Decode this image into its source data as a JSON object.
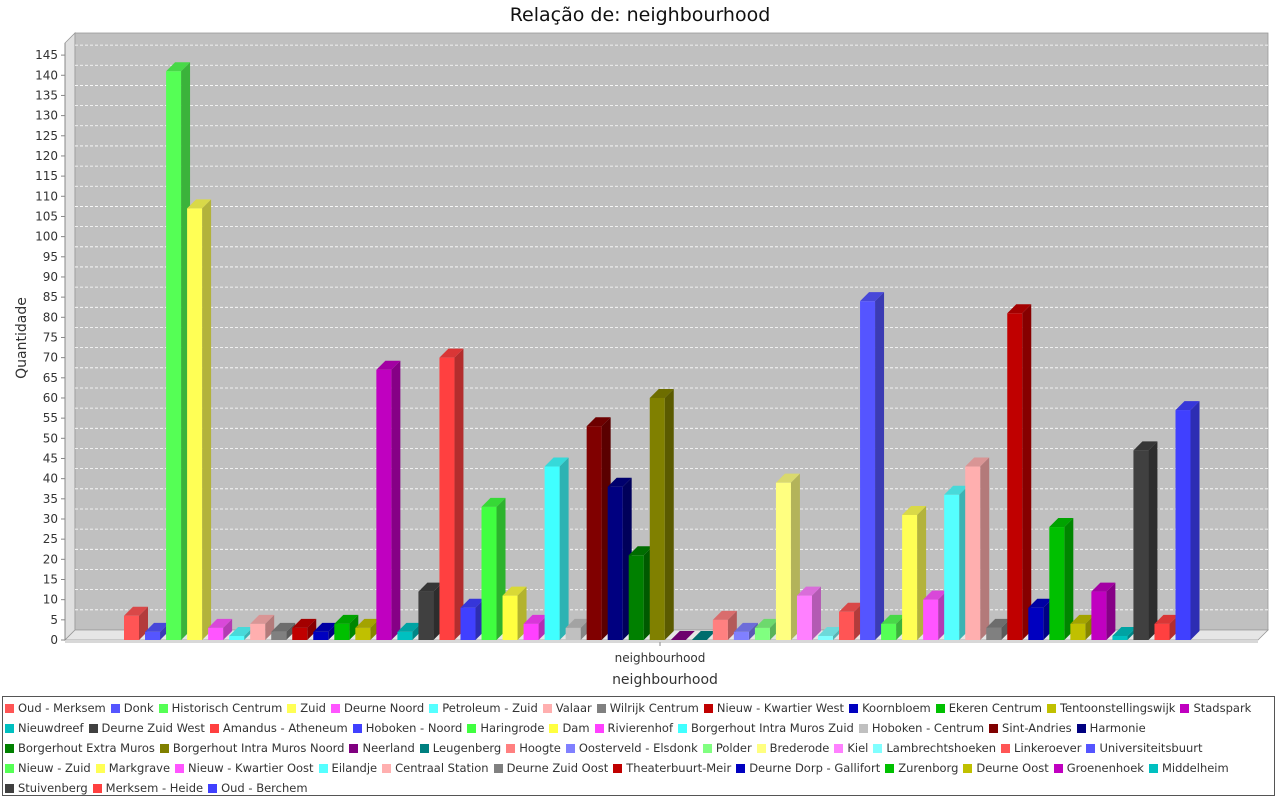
{
  "chart_data": {
    "type": "bar",
    "title": "Relação de: neighbourhood",
    "xlabel": "neighbourhood",
    "ylabel": "Quantidade",
    "categories": [
      "neighbourhood"
    ],
    "ylim": [
      0,
      148
    ],
    "yticks": [
      0,
      5,
      10,
      15,
      20,
      25,
      30,
      35,
      40,
      45,
      50,
      55,
      60,
      65,
      70,
      75,
      80,
      85,
      90,
      95,
      100,
      105,
      110,
      115,
      120,
      125,
      130,
      135,
      140,
      145
    ],
    "grid": true,
    "legend_position": "bottom",
    "series": [
      {
        "name": "Oud - Merksem",
        "value": 6,
        "color": "#ff5555"
      },
      {
        "name": "Donk",
        "value": 2,
        "color": "#5555ff"
      },
      {
        "name": "Historisch Centrum",
        "value": 141,
        "color": "#55ff55"
      },
      {
        "name": "Zuid",
        "value": 107,
        "color": "#ffff55"
      },
      {
        "name": "Deurne Noord",
        "value": 3,
        "color": "#ff55ff"
      },
      {
        "name": "Petroleum - Zuid",
        "value": 1,
        "color": "#55ffff"
      },
      {
        "name": "Valaar",
        "value": 4,
        "color": "#ffafaf"
      },
      {
        "name": "Wilrijk Centrum",
        "value": 2,
        "color": "#808080"
      },
      {
        "name": "Nieuw - Kwartier West",
        "value": 3,
        "color": "#c00000"
      },
      {
        "name": "Koornbloem",
        "value": 2,
        "color": "#0000c0"
      },
      {
        "name": "Ekeren Centrum",
        "value": 4,
        "color": "#00c000"
      },
      {
        "name": "Tentoonstellingswijk",
        "value": 3,
        "color": "#c0c000"
      },
      {
        "name": "Stadspark",
        "value": 67,
        "color": "#c000c0"
      },
      {
        "name": "Nieuwdreef",
        "value": 2,
        "color": "#00c0c0"
      },
      {
        "name": "Deurne Zuid West",
        "value": 12,
        "color": "#404040"
      },
      {
        "name": "Amandus - Atheneum",
        "value": 70,
        "color": "#ff4040"
      },
      {
        "name": "Hoboken - Noord",
        "value": 8,
        "color": "#4040ff"
      },
      {
        "name": "Haringrode",
        "value": 33,
        "color": "#40ff40"
      },
      {
        "name": "Dam",
        "value": 11,
        "color": "#ffff40"
      },
      {
        "name": "Rivierenhof",
        "value": 4,
        "color": "#ff40ff"
      },
      {
        "name": "Borgerhout Intra Muros Zuid",
        "value": 43,
        "color": "#40ffff"
      },
      {
        "name": "Hoboken - Centrum",
        "value": 3,
        "color": "#c0c0c0"
      },
      {
        "name": "Sint-Andries",
        "value": 53,
        "color": "#800000"
      },
      {
        "name": "Harmonie",
        "value": 38,
        "color": "#000080"
      },
      {
        "name": "Borgerhout Extra Muros",
        "value": 21,
        "color": "#008000"
      },
      {
        "name": "Borgerhout Intra Muros Noord",
        "value": 60,
        "color": "#808000"
      },
      {
        "name": "Neerland",
        "value": 0,
        "color": "#800080"
      },
      {
        "name": "Leugenberg",
        "value": 0,
        "color": "#008080"
      },
      {
        "name": "Hoogte",
        "value": 5,
        "color": "#ff8080"
      },
      {
        "name": "Oosterveld - Elsdonk",
        "value": 2,
        "color": "#8080ff"
      },
      {
        "name": "Polder",
        "value": 3,
        "color": "#80ff80"
      },
      {
        "name": "Brederode",
        "value": 39,
        "color": "#ffff80"
      },
      {
        "name": "Kiel",
        "value": 11,
        "color": "#ff80ff"
      },
      {
        "name": "Lambrechtshoeken",
        "value": 1,
        "color": "#80ffff"
      },
      {
        "name": "Linkeroever",
        "value": 7,
        "color": "#ff5555"
      },
      {
        "name": "Universiteitsbuurt",
        "value": 84,
        "color": "#5555ff"
      },
      {
        "name": "Nieuw - Zuid",
        "value": 4,
        "color": "#55ff55"
      },
      {
        "name": "Markgrave",
        "value": 31,
        "color": "#ffff55"
      },
      {
        "name": "Nieuw - Kwartier Oost",
        "value": 10,
        "color": "#ff55ff"
      },
      {
        "name": "Eilandje",
        "value": 36,
        "color": "#55ffff"
      },
      {
        "name": "Centraal Station",
        "value": 43,
        "color": "#ffafaf"
      },
      {
        "name": "Deurne Zuid Oost",
        "value": 3,
        "color": "#808080"
      },
      {
        "name": "Theaterbuurt-Meir",
        "value": 81,
        "color": "#c00000"
      },
      {
        "name": "Deurne Dorp - Gallifort",
        "value": 8,
        "color": "#0000c0"
      },
      {
        "name": "Zurenborg",
        "value": 28,
        "color": "#00c000"
      },
      {
        "name": "Deurne Oost",
        "value": 4,
        "color": "#c0c000"
      },
      {
        "name": "Groenenhoek",
        "value": 12,
        "color": "#c000c0"
      },
      {
        "name": "Middelheim",
        "value": 1,
        "color": "#00c0c0"
      },
      {
        "name": "Stuivenberg",
        "value": 47,
        "color": "#404040"
      },
      {
        "name": "Merksem - Heide",
        "value": 4,
        "color": "#ff4040"
      },
      {
        "name": "Oud - Berchem",
        "value": 57,
        "color": "#4040ff"
      }
    ]
  }
}
